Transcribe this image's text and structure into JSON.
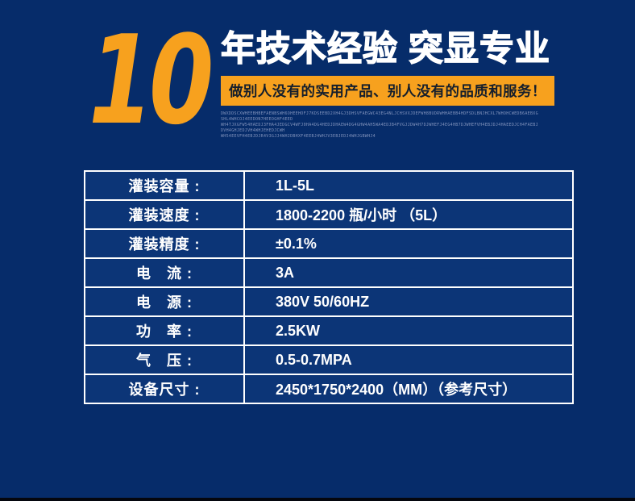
{
  "colors": {
    "background": "#062c6a",
    "accent_orange": "#F7A11E",
    "table_cell": "#0C3577",
    "headline_text": "#FFFFFF",
    "banner_text": "#141E2C",
    "fine_print": "#8293BC",
    "bottom_strip": "#05070E"
  },
  "header": {
    "big_number": "10",
    "headline": "年技术经验 突显专业",
    "banner": "做别人没有的实用产品、别人没有的品质和服务！",
    "fine_print": [
      "DWXDDSCXWHEEBHBEFAENBSWH6OHEEHOFJ7KDSEEBD2XH4GJ3DHSVFAEGWC43EG4NLJCHSVXJDEFWH8BUDRWHHAEBB4HDFSDLBNJHCXL7WHOHCWEDB6AEBXGSHL4WHCOJ4EEDON7HEEOGHF4EED",
      "WH4TJXGFW54HAEDJ3FHA4JEDGCV4WFJ0HA4DG4HEDJDHAEW4DG4GHW4AH5WA4EDJB4FVGJJDW4H7DJWHEFJ4EG4HB7DJWHEFVH4EBJDJ4HAEEDJCH4FAEBJDVH4GHJEDJVH4WHJEHEDJCWH",
      "WH54EEVFH4EBJDJR4V3GJJ4WHJDBHXF4EEBJ4WHJV3EBJEDJ4WHJGBWHJ4"
    ]
  },
  "spec_table": {
    "rows": [
      {
        "label": "灌装容量 :",
        "value": "1L-5L"
      },
      {
        "label": "灌装速度 :",
        "value": "1800-2200 瓶/小时 （5L）"
      },
      {
        "label": "灌装精度 :",
        "value": "±0.1%"
      },
      {
        "label": "电　流 :",
        "value": "3A"
      },
      {
        "label": "电　源 :",
        "value": "380V 50/60HZ"
      },
      {
        "label": "功　率 :",
        "value": "2.5KW"
      },
      {
        "label": "气　压 :",
        "value": "0.5-0.7MPA"
      },
      {
        "label": "设备尺寸 :",
        "value": "2450*1750*2400（MM）（参考尺寸）"
      }
    ]
  }
}
